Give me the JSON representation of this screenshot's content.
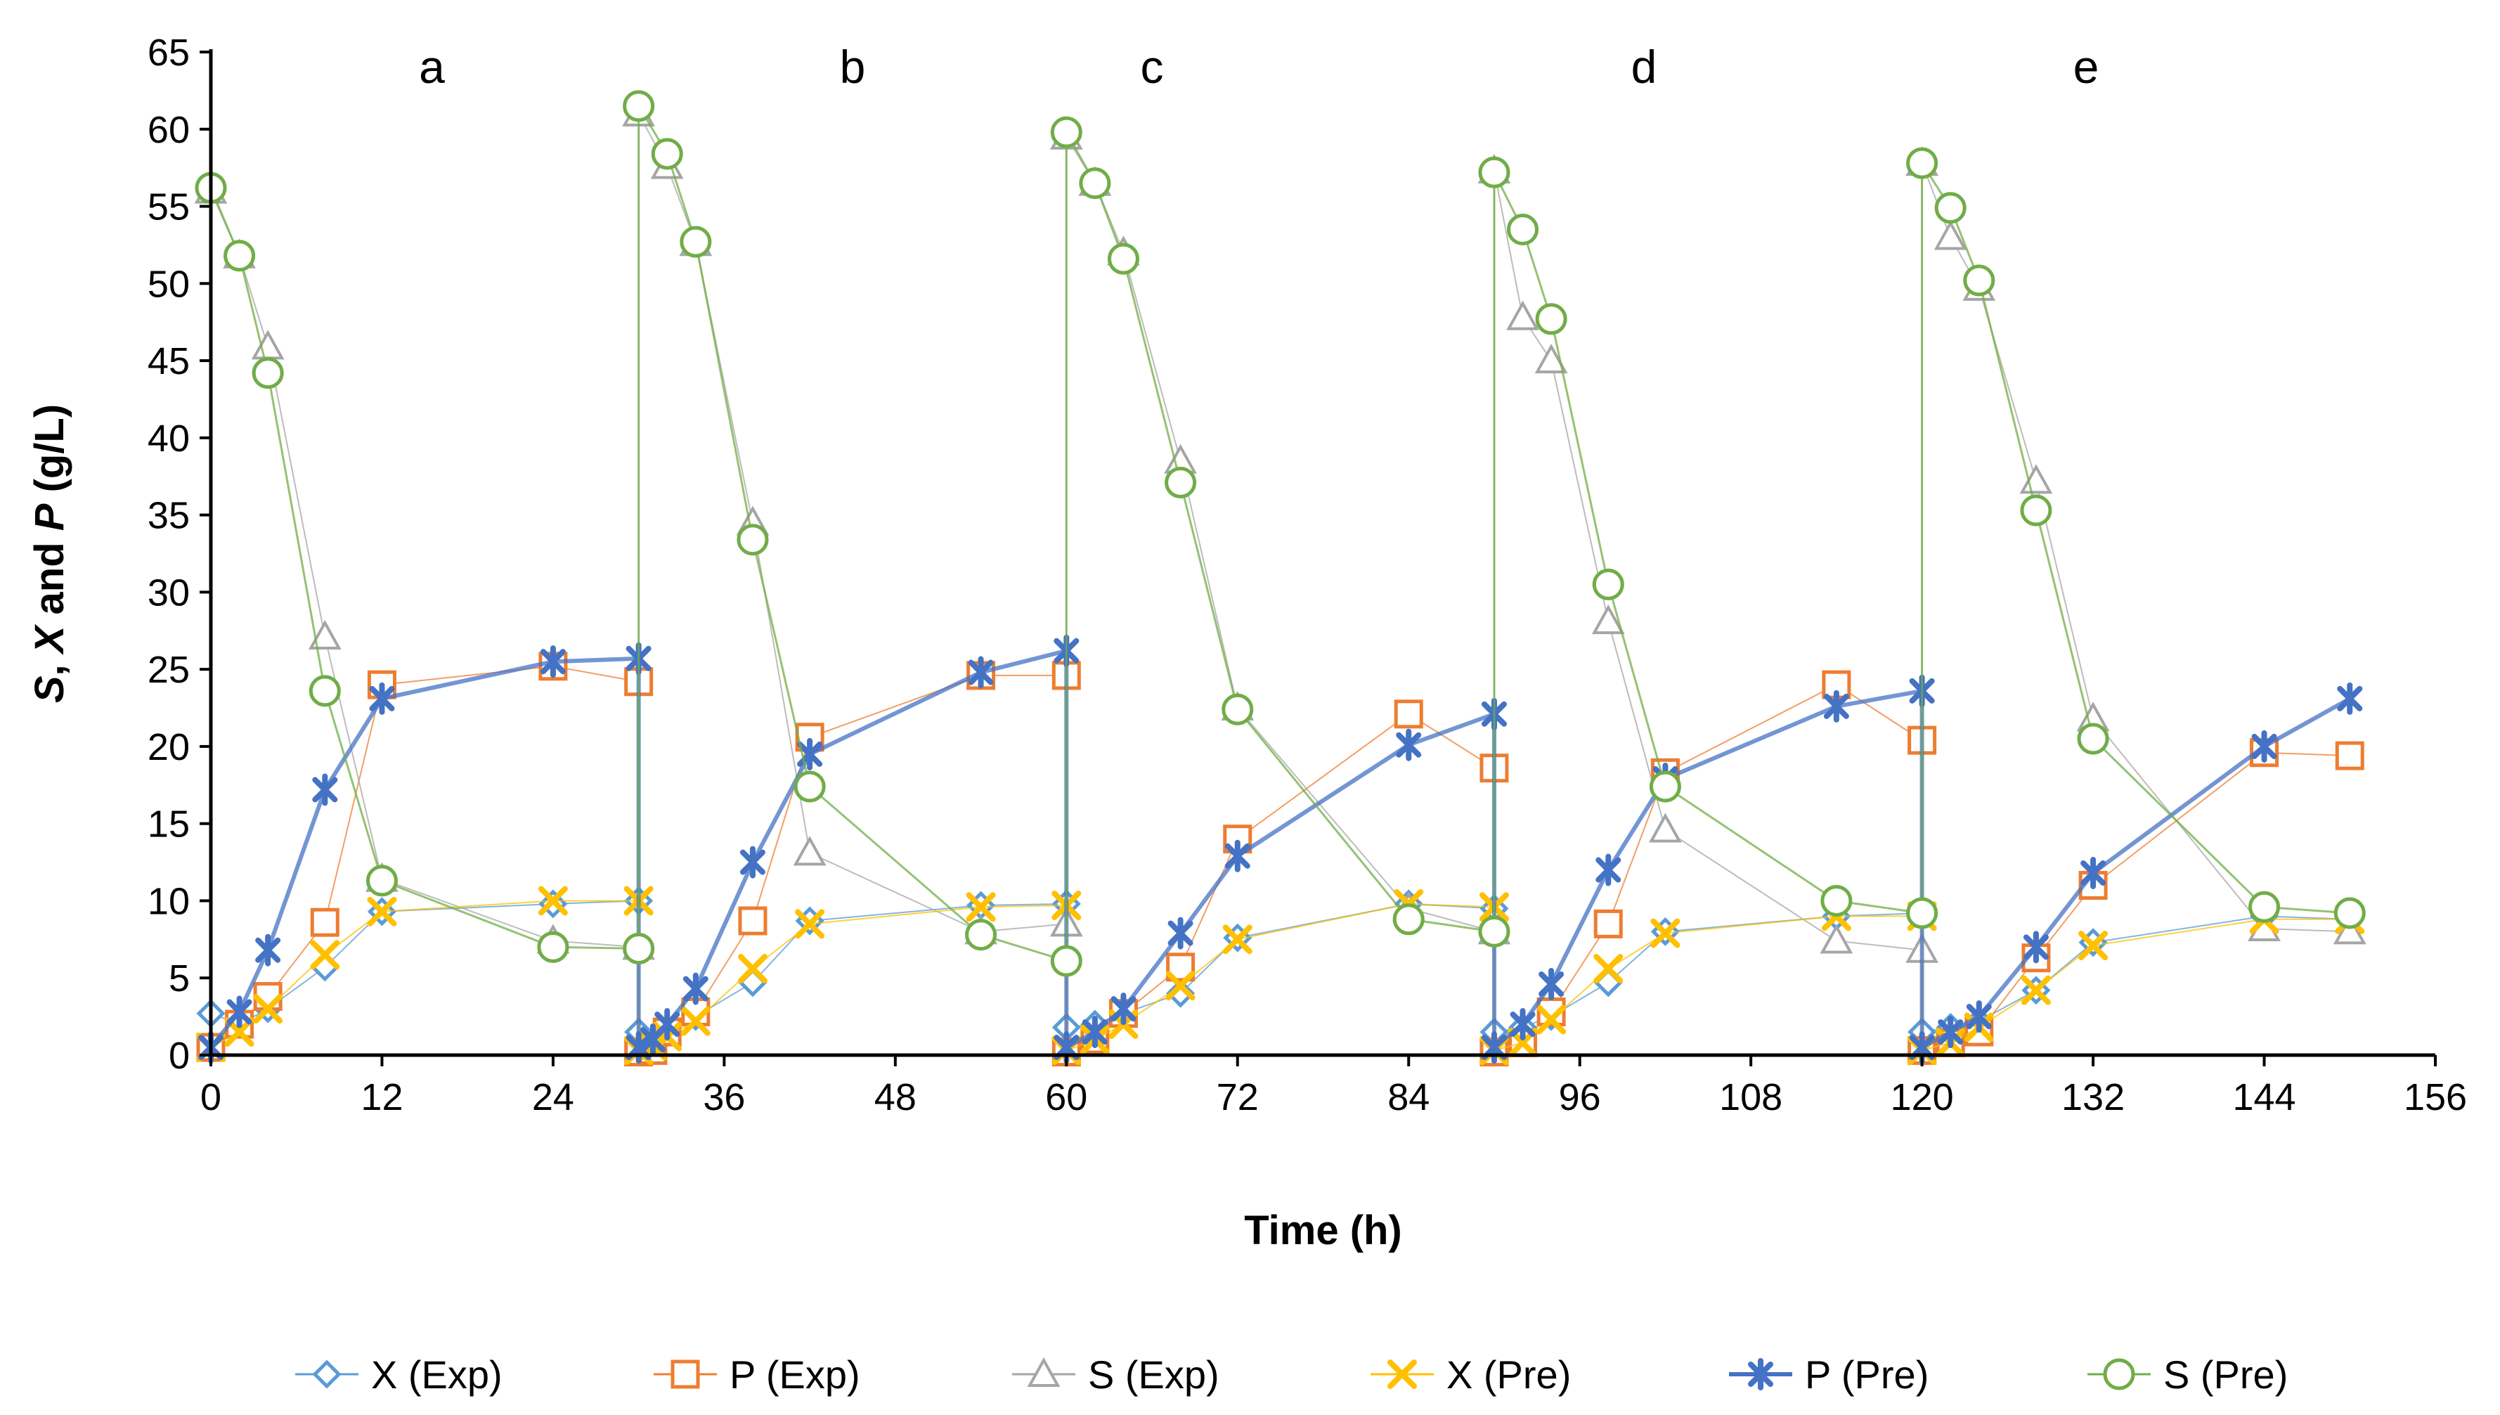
{
  "chart_data": {
    "type": "line",
    "title": "",
    "xlabel": "Time (h)",
    "ylabel_parts": [
      "S",
      ", ",
      "X",
      " and ",
      "P",
      " (g/L)"
    ],
    "xlim": [
      0,
      156
    ],
    "ylim": [
      0,
      65
    ],
    "x_ticks": [
      0,
      12,
      24,
      36,
      48,
      60,
      72,
      84,
      96,
      108,
      120,
      132,
      144,
      156
    ],
    "y_ticks": [
      0,
      5,
      10,
      15,
      20,
      25,
      30,
      35,
      40,
      45,
      50,
      55,
      60,
      65
    ],
    "panel_labels": [
      {
        "text": "a",
        "x": 15.5,
        "y": 63
      },
      {
        "text": "b",
        "x": 45,
        "y": 63
      },
      {
        "text": "c",
        "x": 66,
        "y": 63
      },
      {
        "text": "d",
        "x": 100.5,
        "y": 63
      },
      {
        "text": "e",
        "x": 131.5,
        "y": 63
      }
    ],
    "legend_position": "bottom",
    "series": [
      {
        "name": "X (Exp)",
        "marker": "diamond",
        "color": "#5B9BD5",
        "line_width": 2,
        "points": [
          [
            0,
            2.7
          ],
          [
            2,
            2.0
          ],
          [
            4,
            3.0
          ],
          [
            8,
            5.7
          ],
          [
            12,
            9.3
          ],
          [
            24,
            9.8
          ],
          [
            30,
            10.0
          ],
          [
            30,
            1.5
          ],
          [
            31,
            1.0
          ],
          [
            32,
            1.5
          ],
          [
            34,
            2.5
          ],
          [
            38,
            4.7
          ],
          [
            42,
            8.7
          ],
          [
            54,
            9.7
          ],
          [
            60,
            9.8
          ],
          [
            60,
            1.8
          ],
          [
            62,
            2.0
          ],
          [
            64,
            2.7
          ],
          [
            68,
            4.0
          ],
          [
            72,
            7.6
          ],
          [
            84,
            9.8
          ],
          [
            90,
            9.5
          ],
          [
            90,
            1.5
          ],
          [
            92,
            1.8
          ],
          [
            94,
            2.5
          ],
          [
            98,
            4.7
          ],
          [
            102,
            8.0
          ],
          [
            114,
            9.0
          ],
          [
            120,
            9.2
          ],
          [
            120,
            1.5
          ],
          [
            122,
            1.8
          ],
          [
            124,
            2.2
          ],
          [
            128,
            4.2
          ],
          [
            132,
            7.3
          ],
          [
            144,
            9.0
          ],
          [
            150,
            8.8
          ]
        ]
      },
      {
        "name": "P (Exp)",
        "marker": "square",
        "color": "#ED7D31",
        "line_width": 2,
        "points": [
          [
            0,
            0.5
          ],
          [
            2,
            2.0
          ],
          [
            4,
            3.8
          ],
          [
            8,
            8.6
          ],
          [
            12,
            24.0
          ],
          [
            24,
            25.2
          ],
          [
            30,
            24.2
          ],
          [
            30,
            0.2
          ],
          [
            31,
            0.3
          ],
          [
            32,
            1.5
          ],
          [
            34,
            2.8
          ],
          [
            38,
            8.7
          ],
          [
            42,
            20.6
          ],
          [
            54,
            24.6
          ],
          [
            60,
            24.6
          ],
          [
            60,
            0.2
          ],
          [
            62,
            1.0
          ],
          [
            64,
            2.7
          ],
          [
            68,
            5.7
          ],
          [
            72,
            14.0
          ],
          [
            84,
            22.1
          ],
          [
            90,
            18.6
          ],
          [
            90,
            0.2
          ],
          [
            92,
            0.8
          ],
          [
            94,
            2.8
          ],
          [
            98,
            8.5
          ],
          [
            102,
            18.3
          ],
          [
            114,
            24.0
          ],
          [
            120,
            20.4
          ],
          [
            120,
            0.3
          ],
          [
            122,
            0.8
          ],
          [
            124,
            1.5
          ],
          [
            128,
            6.3
          ],
          [
            132,
            11.0
          ],
          [
            144,
            19.6
          ],
          [
            150,
            19.4
          ]
        ]
      },
      {
        "name": "S (Exp)",
        "marker": "triangle",
        "color": "#A5A5A5",
        "line_width": 2,
        "points": [
          [
            0,
            56.0
          ],
          [
            2,
            51.8
          ],
          [
            4,
            45.9
          ],
          [
            8,
            27.1
          ],
          [
            12,
            11.4
          ],
          [
            24,
            7.4
          ],
          [
            30,
            7.0
          ],
          [
            30,
            61.0
          ],
          [
            32,
            57.6
          ],
          [
            34,
            52.6
          ],
          [
            38,
            34.5
          ],
          [
            42,
            13.1
          ],
          [
            54,
            8.0
          ],
          [
            60,
            8.5
          ],
          [
            60,
            59.5
          ],
          [
            62,
            56.5
          ],
          [
            64,
            52.0
          ],
          [
            68,
            38.5
          ],
          [
            72,
            22.5
          ],
          [
            84,
            9.5
          ],
          [
            90,
            8.0
          ],
          [
            90,
            57.3
          ],
          [
            92,
            47.8
          ],
          [
            94,
            45.0
          ],
          [
            98,
            28.1
          ],
          [
            102,
            14.6
          ],
          [
            114,
            7.4
          ],
          [
            120,
            6.8
          ],
          [
            120,
            57.8
          ],
          [
            122,
            53.0
          ],
          [
            124,
            49.7
          ],
          [
            128,
            37.2
          ],
          [
            132,
            21.8
          ],
          [
            144,
            8.2
          ],
          [
            150,
            8.0
          ]
        ]
      },
      {
        "name": "X (Pre)",
        "marker": "x",
        "color": "#FFC000",
        "line_width": 2,
        "points": [
          [
            0,
            0.5
          ],
          [
            2,
            1.5
          ],
          [
            4,
            3.0
          ],
          [
            8,
            6.5
          ],
          [
            12,
            9.3
          ],
          [
            24,
            10.0
          ],
          [
            30,
            10.0
          ],
          [
            30,
            0.3
          ],
          [
            31,
            0.6
          ],
          [
            32,
            1.2
          ],
          [
            34,
            2.2
          ],
          [
            38,
            5.6
          ],
          [
            42,
            8.5
          ],
          [
            54,
            9.6
          ],
          [
            60,
            9.7
          ],
          [
            60,
            0.3
          ],
          [
            62,
            1.0
          ],
          [
            64,
            2.0
          ],
          [
            68,
            4.5
          ],
          [
            72,
            7.5
          ],
          [
            84,
            9.8
          ],
          [
            90,
            9.6
          ],
          [
            90,
            0.3
          ],
          [
            92,
            0.8
          ],
          [
            94,
            2.3
          ],
          [
            98,
            5.6
          ],
          [
            102,
            7.9
          ],
          [
            114,
            9.0
          ],
          [
            120,
            9.0
          ],
          [
            120,
            0.3
          ],
          [
            122,
            0.8
          ],
          [
            124,
            1.8
          ],
          [
            128,
            4.2
          ],
          [
            132,
            7.1
          ],
          [
            144,
            8.8
          ],
          [
            150,
            8.8
          ]
        ]
      },
      {
        "name": "P (Pre)",
        "marker": "asterisk",
        "color": "#4472C4",
        "line_width": 6,
        "points": [
          [
            0,
            0.5
          ],
          [
            2,
            2.8
          ],
          [
            4,
            6.8
          ],
          [
            8,
            17.2
          ],
          [
            12,
            23.1
          ],
          [
            24,
            25.5
          ],
          [
            30,
            25.7
          ],
          [
            30,
            0.5
          ],
          [
            31,
            1.0
          ],
          [
            32,
            2.0
          ],
          [
            34,
            4.3
          ],
          [
            38,
            12.5
          ],
          [
            42,
            19.5
          ],
          [
            54,
            24.8
          ],
          [
            60,
            26.2
          ],
          [
            60,
            0.5
          ],
          [
            62,
            1.5
          ],
          [
            64,
            3.0
          ],
          [
            68,
            7.9
          ],
          [
            72,
            12.9
          ],
          [
            84,
            20.1
          ],
          [
            90,
            22.1
          ],
          [
            90,
            0.5
          ],
          [
            92,
            2.0
          ],
          [
            94,
            4.6
          ],
          [
            98,
            12.0
          ],
          [
            102,
            17.9
          ],
          [
            114,
            22.6
          ],
          [
            120,
            23.6
          ],
          [
            120,
            0.5
          ],
          [
            122,
            1.5
          ],
          [
            124,
            2.5
          ],
          [
            128,
            7.0
          ],
          [
            132,
            11.8
          ],
          [
            144,
            20.0
          ],
          [
            150,
            23.1
          ]
        ]
      },
      {
        "name": "S (Pre)",
        "marker": "circle",
        "color": "#70AD47",
        "line_width": 3,
        "points": [
          [
            0,
            56.2
          ],
          [
            2,
            51.8
          ],
          [
            4,
            44.2
          ],
          [
            8,
            23.6
          ],
          [
            12,
            11.3
          ],
          [
            24,
            7.0
          ],
          [
            30,
            6.9
          ],
          [
            30,
            61.5
          ],
          [
            32,
            58.4
          ],
          [
            34,
            52.7
          ],
          [
            38,
            33.4
          ],
          [
            42,
            17.4
          ],
          [
            54,
            7.8
          ],
          [
            60,
            6.1
          ],
          [
            60,
            59.8
          ],
          [
            62,
            56.5
          ],
          [
            64,
            51.6
          ],
          [
            68,
            37.1
          ],
          [
            72,
            22.4
          ],
          [
            84,
            8.8
          ],
          [
            90,
            8.0
          ],
          [
            90,
            57.2
          ],
          [
            92,
            53.5
          ],
          [
            94,
            47.7
          ],
          [
            98,
            30.5
          ],
          [
            102,
            17.4
          ],
          [
            114,
            10.0
          ],
          [
            120,
            9.2
          ],
          [
            120,
            57.8
          ],
          [
            122,
            54.9
          ],
          [
            124,
            50.2
          ],
          [
            128,
            35.3
          ],
          [
            132,
            20.5
          ],
          [
            144,
            9.6
          ],
          [
            150,
            9.2
          ]
        ]
      }
    ]
  }
}
